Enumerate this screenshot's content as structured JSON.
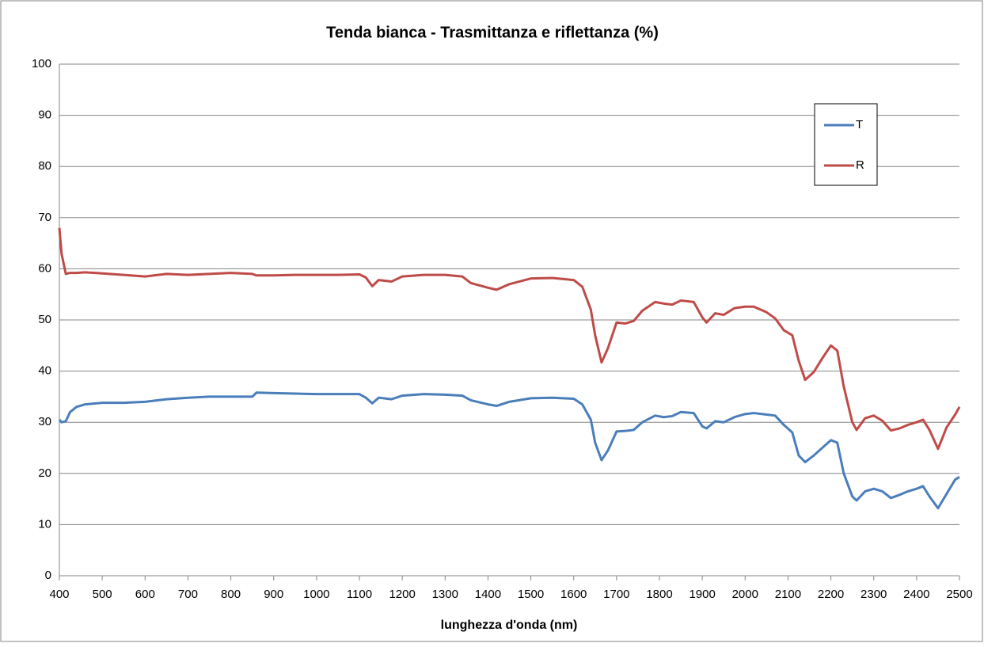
{
  "chart_data": {
    "type": "line",
    "title": "Tenda bianca - Trasmittanza e riflettanza (%)",
    "xlabel": "lunghezza d'onda (nm)",
    "x": [
      400,
      405,
      415,
      425,
      440,
      460,
      500,
      550,
      600,
      650,
      700,
      750,
      800,
      850,
      860,
      900,
      950,
      1000,
      1050,
      1100,
      1115,
      1130,
      1145,
      1175,
      1200,
      1250,
      1300,
      1340,
      1360,
      1400,
      1420,
      1450,
      1500,
      1550,
      1600,
      1620,
      1640,
      1650,
      1665,
      1680,
      1700,
      1720,
      1740,
      1760,
      1790,
      1810,
      1830,
      1850,
      1880,
      1900,
      1910,
      1930,
      1950,
      1975,
      2000,
      2020,
      2050,
      2070,
      2090,
      2110,
      2125,
      2140,
      2160,
      2180,
      2200,
      2215,
      2230,
      2250,
      2260,
      2280,
      2300,
      2320,
      2340,
      2360,
      2380,
      2400,
      2415,
      2430,
      2450,
      2470,
      2490,
      2500
    ],
    "series": [
      {
        "name": "T",
        "color": "#4a7ebb",
        "values": [
          30.5,
          30,
          30.2,
          32,
          33,
          33.5,
          33.8,
          33.8,
          34,
          34.5,
          34.8,
          35,
          35,
          35,
          35.8,
          35.7,
          35.6,
          35.5,
          35.5,
          35.5,
          34.8,
          33.7,
          34.8,
          34.5,
          35.2,
          35.5,
          35.4,
          35.2,
          34.3,
          33.5,
          33.2,
          34,
          34.7,
          34.8,
          34.6,
          33.5,
          30.5,
          26,
          22.6,
          24.5,
          28.2,
          28.3,
          28.5,
          30,
          31.3,
          31,
          31.2,
          32,
          31.8,
          29.2,
          28.8,
          30.2,
          30,
          31,
          31.6,
          31.8,
          31.5,
          31.3,
          29.5,
          28,
          23.5,
          22.2,
          23.5,
          25,
          26.5,
          26,
          20,
          15.5,
          14.7,
          16.5,
          17,
          16.5,
          15.2,
          15.8,
          16.5,
          17,
          17.5,
          15.5,
          13.2,
          16,
          18.8,
          19.3
        ]
      },
      {
        "name": "R",
        "color": "#be4b48",
        "values": [
          68,
          63,
          59,
          59.2,
          59.2,
          59.3,
          59.1,
          58.8,
          58.5,
          59,
          58.8,
          59,
          59.2,
          59,
          58.7,
          58.7,
          58.8,
          58.8,
          58.8,
          58.9,
          58.3,
          56.6,
          57.8,
          57.5,
          58.5,
          58.8,
          58.8,
          58.5,
          57.2,
          56.3,
          55.9,
          57,
          58.1,
          58.2,
          57.8,
          56.5,
          52,
          47,
          41.7,
          44.5,
          49.5,
          49.3,
          49.8,
          51.8,
          53.5,
          53.2,
          53,
          53.8,
          53.5,
          50.5,
          49.5,
          51.3,
          51,
          52.3,
          52.6,
          52.6,
          51.5,
          50.3,
          48,
          47,
          42,
          38.3,
          39.8,
          42.5,
          45,
          44,
          37,
          30,
          28.5,
          30.8,
          31.3,
          30.3,
          28.4,
          28.8,
          29.5,
          30,
          30.5,
          28.5,
          24.8,
          29,
          31.5,
          33
        ]
      }
    ],
    "xlim": [
      400,
      2500
    ],
    "xticks": [
      400,
      500,
      600,
      700,
      800,
      900,
      1000,
      1100,
      1200,
      1300,
      1400,
      1500,
      1600,
      1700,
      1800,
      1900,
      2000,
      2100,
      2200,
      2300,
      2400,
      2500
    ],
    "ylim": [
      0,
      100
    ],
    "yticks": [
      0,
      10,
      20,
      30,
      40,
      50,
      60,
      70,
      80,
      90,
      100
    ],
    "grid": true,
    "legend": "upper right"
  }
}
